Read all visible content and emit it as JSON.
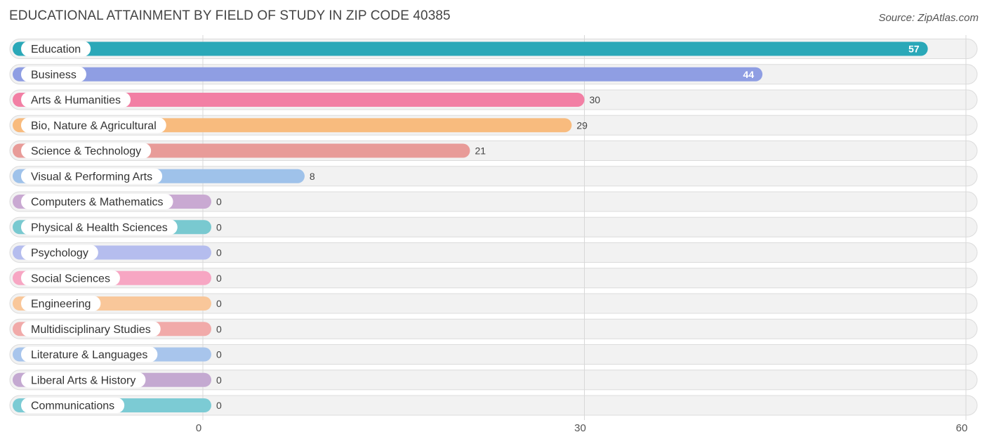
{
  "chart_data": {
    "type": "bar",
    "orientation": "horizontal",
    "title": "EDUCATIONAL ATTAINMENT BY FIELD OF STUDY IN ZIP CODE 40385",
    "source": "Source: ZipAtlas.com",
    "xlim": [
      0,
      60
    ],
    "xticks": [
      "0",
      "30",
      "60"
    ],
    "grid": true,
    "categories": [
      "Education",
      "Business",
      "Arts & Humanities",
      "Bio, Nature & Agricultural",
      "Science & Technology",
      "Visual & Performing Arts",
      "Computers & Mathematics",
      "Physical & Health Sciences",
      "Psychology",
      "Social Sciences",
      "Engineering",
      "Multidisciplinary Studies",
      "Literature & Languages",
      "Liberal Arts & History",
      "Communications"
    ],
    "values": [
      57,
      44,
      30,
      29,
      21,
      8,
      0,
      0,
      0,
      0,
      0,
      0,
      0,
      0,
      0
    ],
    "colors": [
      "#2aa8b8",
      "#8f9ee3",
      "#f27fa4",
      "#f8bb7e",
      "#e89b98",
      "#9fc2ea",
      "#c9a9d2",
      "#79c9d0",
      "#b5bdee",
      "#f7a6c3",
      "#f9c79a",
      "#f1aaa9",
      "#a8c5ec",
      "#c4a9d1",
      "#7ccbd4"
    ]
  }
}
